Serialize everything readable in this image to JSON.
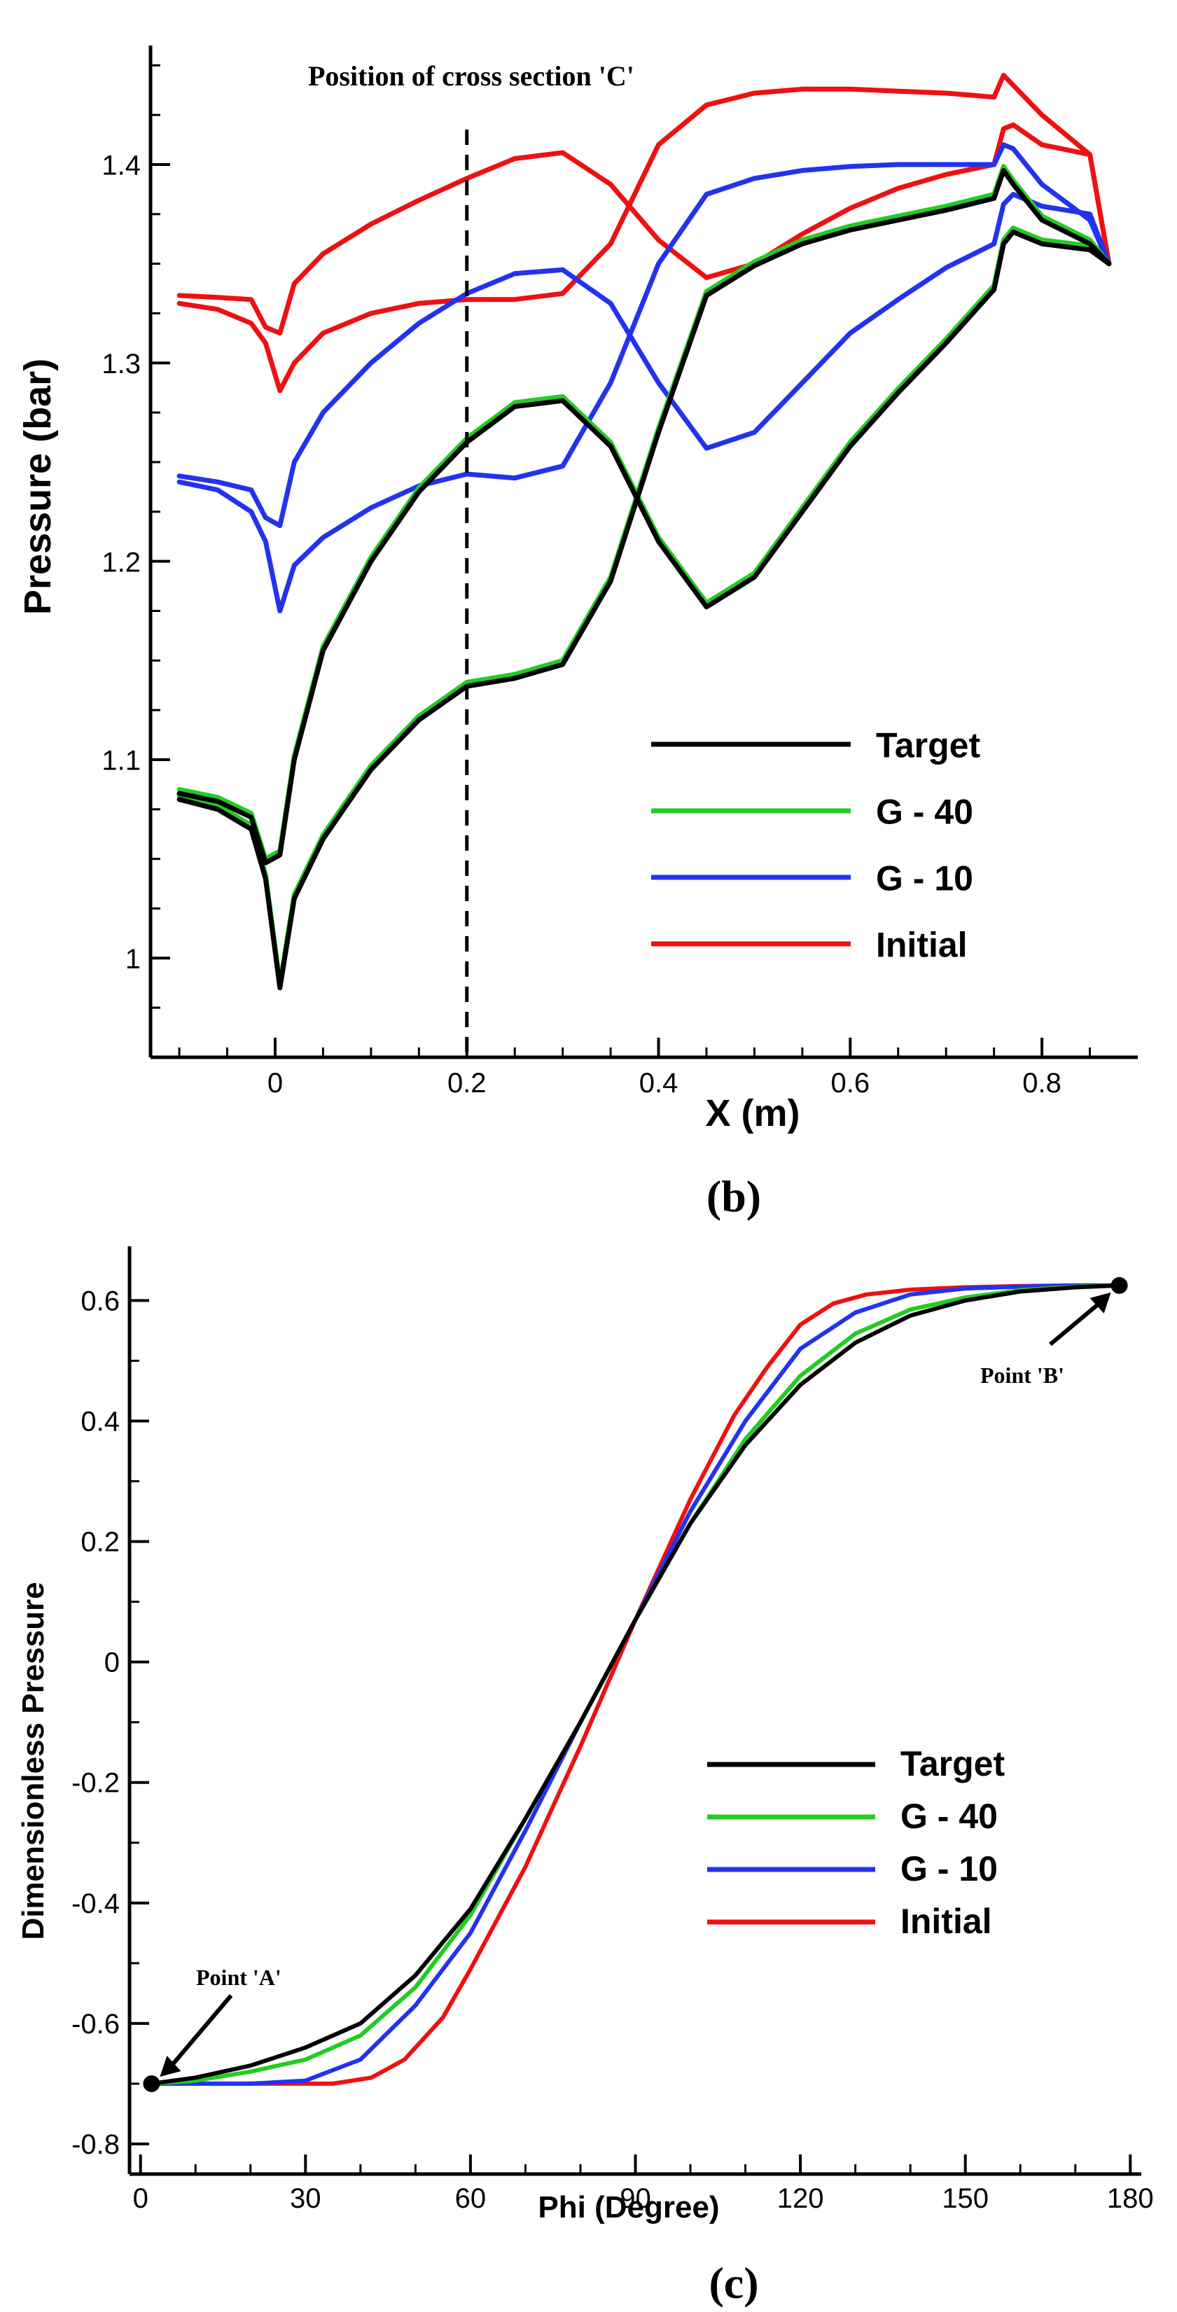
{
  "chart_data": [
    {
      "type": "line",
      "panel_label": "(b)",
      "xlabel": "X (m)",
      "ylabel": "Pressure (bar)",
      "xlim": [
        -0.13,
        0.9
      ],
      "ylim": [
        0.95,
        1.46
      ],
      "xticks": [
        0,
        0.2,
        0.4,
        0.6,
        0.8
      ],
      "xtick_labels": [
        "0",
        "0.2",
        "0.4",
        "0.6",
        "0.8"
      ],
      "yticks": [
        1.0,
        1.1,
        1.2,
        1.3,
        1.4
      ],
      "ytick_labels": [
        "1",
        "1.1",
        "1.2",
        "1.3",
        "1.4"
      ],
      "annotation": "Position of cross section 'C'",
      "dashed_line_x": 0.2,
      "legend_position": "bottom-right",
      "series": [
        {
          "name": "Target",
          "color": "#000000",
          "lower": {
            "x": [
              -0.1,
              -0.06,
              -0.025,
              -0.01,
              0.005,
              0.02,
              0.05,
              0.1,
              0.15,
              0.2,
              0.25,
              0.3,
              0.35,
              0.4,
              0.45,
              0.5,
              0.55,
              0.6,
              0.65,
              0.7,
              0.75,
              0.76,
              0.77,
              0.8,
              0.85,
              0.87
            ],
            "y": [
              1.08,
              1.075,
              1.065,
              1.04,
              0.985,
              1.03,
              1.06,
              1.095,
              1.12,
              1.137,
              1.141,
              1.148,
              1.19,
              1.265,
              1.334,
              1.349,
              1.36,
              1.367,
              1.372,
              1.377,
              1.383,
              1.397,
              1.39,
              1.372,
              1.36,
              1.35
            ]
          },
          "upper": {
            "x": [
              -0.1,
              -0.06,
              -0.025,
              -0.01,
              0.005,
              0.02,
              0.05,
              0.1,
              0.15,
              0.2,
              0.25,
              0.3,
              0.35,
              0.4,
              0.45,
              0.5,
              0.55,
              0.6,
              0.65,
              0.7,
              0.75,
              0.76,
              0.77,
              0.8,
              0.85,
              0.87
            ],
            "y": [
              1.083,
              1.079,
              1.071,
              1.048,
              1.052,
              1.1,
              1.155,
              1.2,
              1.235,
              1.26,
              1.278,
              1.281,
              1.258,
              1.21,
              1.177,
              1.192,
              1.225,
              1.258,
              1.285,
              1.31,
              1.337,
              1.36,
              1.366,
              1.36,
              1.357,
              1.35
            ]
          }
        },
        {
          "name": "G - 40",
          "color": "#22cc22",
          "lower": {
            "x": [
              -0.1,
              -0.06,
              -0.025,
              -0.01,
              0.005,
              0.02,
              0.05,
              0.1,
              0.15,
              0.2,
              0.25,
              0.3,
              0.35,
              0.4,
              0.45,
              0.5,
              0.55,
              0.6,
              0.65,
              0.7,
              0.75,
              0.76,
              0.77,
              0.8,
              0.85,
              0.87
            ],
            "y": [
              1.082,
              1.077,
              1.067,
              1.042,
              0.987,
              1.032,
              1.062,
              1.097,
              1.122,
              1.139,
              1.143,
              1.15,
              1.192,
              1.267,
              1.336,
              1.351,
              1.362,
              1.369,
              1.374,
              1.379,
              1.385,
              1.399,
              1.392,
              1.374,
              1.362,
              1.35
            ]
          },
          "upper": {
            "x": [
              -0.1,
              -0.06,
              -0.025,
              -0.01,
              0.005,
              0.02,
              0.05,
              0.1,
              0.15,
              0.2,
              0.25,
              0.3,
              0.35,
              0.4,
              0.45,
              0.5,
              0.55,
              0.6,
              0.65,
              0.7,
              0.75,
              0.76,
              0.77,
              0.8,
              0.85,
              0.87
            ],
            "y": [
              1.085,
              1.081,
              1.073,
              1.05,
              1.054,
              1.102,
              1.157,
              1.202,
              1.237,
              1.262,
              1.28,
              1.283,
              1.26,
              1.212,
              1.179,
              1.194,
              1.227,
              1.26,
              1.287,
              1.312,
              1.339,
              1.362,
              1.368,
              1.362,
              1.359,
              1.35
            ]
          }
        },
        {
          "name": "G - 10",
          "color": "#2233ee",
          "lower": {
            "x": [
              -0.1,
              -0.06,
              -0.025,
              -0.01,
              0.005,
              0.02,
              0.05,
              0.1,
              0.15,
              0.2,
              0.25,
              0.3,
              0.35,
              0.4,
              0.45,
              0.5,
              0.55,
              0.6,
              0.65,
              0.7,
              0.75,
              0.76,
              0.77,
              0.8,
              0.85,
              0.87
            ],
            "y": [
              1.24,
              1.236,
              1.225,
              1.21,
              1.175,
              1.198,
              1.212,
              1.227,
              1.238,
              1.244,
              1.242,
              1.248,
              1.29,
              1.35,
              1.385,
              1.393,
              1.397,
              1.399,
              1.4,
              1.4,
              1.4,
              1.41,
              1.408,
              1.39,
              1.372,
              1.35
            ]
          },
          "upper": {
            "x": [
              -0.1,
              -0.06,
              -0.025,
              -0.01,
              0.005,
              0.02,
              0.05,
              0.1,
              0.15,
              0.2,
              0.25,
              0.3,
              0.35,
              0.4,
              0.45,
              0.5,
              0.55,
              0.6,
              0.65,
              0.7,
              0.75,
              0.76,
              0.77,
              0.8,
              0.85,
              0.87
            ],
            "y": [
              1.243,
              1.24,
              1.236,
              1.222,
              1.218,
              1.25,
              1.275,
              1.3,
              1.32,
              1.335,
              1.345,
              1.347,
              1.33,
              1.29,
              1.257,
              1.265,
              1.29,
              1.315,
              1.332,
              1.348,
              1.36,
              1.38,
              1.385,
              1.379,
              1.375,
              1.35
            ]
          }
        },
        {
          "name": "Initial",
          "color": "#ee1111",
          "lower": {
            "x": [
              -0.1,
              -0.06,
              -0.025,
              -0.01,
              0.005,
              0.02,
              0.05,
              0.1,
              0.15,
              0.2,
              0.25,
              0.3,
              0.35,
              0.4,
              0.45,
              0.5,
              0.55,
              0.6,
              0.65,
              0.7,
              0.75,
              0.76,
              0.77,
              0.8,
              0.85,
              0.87
            ],
            "y": [
              1.33,
              1.327,
              1.32,
              1.31,
              1.286,
              1.3,
              1.315,
              1.325,
              1.33,
              1.332,
              1.332,
              1.335,
              1.36,
              1.41,
              1.43,
              1.436,
              1.438,
              1.438,
              1.437,
              1.436,
              1.434,
              1.445,
              1.44,
              1.425,
              1.405,
              1.35
            ]
          },
          "upper": {
            "x": [
              -0.1,
              -0.06,
              -0.025,
              -0.01,
              0.005,
              0.02,
              0.05,
              0.1,
              0.15,
              0.2,
              0.25,
              0.3,
              0.35,
              0.4,
              0.45,
              0.5,
              0.55,
              0.6,
              0.65,
              0.7,
              0.75,
              0.76,
              0.77,
              0.8,
              0.85,
              0.87
            ],
            "y": [
              1.334,
              1.333,
              1.332,
              1.318,
              1.315,
              1.34,
              1.355,
              1.37,
              1.382,
              1.393,
              1.403,
              1.406,
              1.39,
              1.362,
              1.343,
              1.35,
              1.365,
              1.378,
              1.388,
              1.395,
              1.4,
              1.418,
              1.42,
              1.41,
              1.405,
              1.35
            ]
          }
        }
      ]
    },
    {
      "type": "line",
      "panel_label": "(c)",
      "xlabel": "Phi (Degree)",
      "ylabel": "Dimensionless Pressure",
      "xlim": [
        -2,
        182
      ],
      "ylim": [
        -0.85,
        0.69
      ],
      "xticks": [
        0,
        30,
        60,
        90,
        120,
        150,
        180
      ],
      "xtick_labels": [
        "0",
        "30",
        "60",
        "90",
        "120",
        "150",
        "180"
      ],
      "yticks": [
        -0.8,
        -0.6,
        -0.4,
        -0.2,
        0,
        0.2,
        0.4,
        0.6
      ],
      "ytick_labels": [
        "-0.8",
        "-0.6",
        "-0.4",
        "-0.2",
        "0",
        "0.2",
        "0.4",
        "0.6"
      ],
      "annotations": [
        {
          "text": "Point 'A'",
          "x": 2,
          "y": -0.7
        },
        {
          "text": "Point 'B'",
          "x": 178,
          "y": 0.625
        }
      ],
      "legend_position": "bottom-right",
      "series": [
        {
          "name": "Target",
          "color": "#000000",
          "x": [
            2,
            10,
            20,
            30,
            40,
            50,
            60,
            70,
            80,
            90,
            100,
            110,
            120,
            130,
            140,
            150,
            160,
            170,
            178
          ],
          "y": [
            -0.7,
            -0.69,
            -0.67,
            -0.64,
            -0.6,
            -0.52,
            -0.41,
            -0.26,
            -0.1,
            0.07,
            0.23,
            0.36,
            0.46,
            0.53,
            0.575,
            0.6,
            0.615,
            0.622,
            0.625
          ]
        },
        {
          "name": "G - 40",
          "color": "#22cc22",
          "x": [
            2,
            10,
            20,
            30,
            40,
            50,
            60,
            70,
            80,
            90,
            100,
            110,
            120,
            130,
            140,
            150,
            160,
            170,
            178
          ],
          "y": [
            -0.7,
            -0.695,
            -0.68,
            -0.66,
            -0.62,
            -0.54,
            -0.42,
            -0.26,
            -0.1,
            0.07,
            0.23,
            0.37,
            0.475,
            0.545,
            0.585,
            0.605,
            0.617,
            0.623,
            0.625
          ]
        },
        {
          "name": "G - 10",
          "color": "#2233ee",
          "x": [
            2,
            10,
            20,
            30,
            40,
            50,
            60,
            70,
            80,
            90,
            100,
            110,
            120,
            130,
            140,
            150,
            160,
            170,
            178
          ],
          "y": [
            -0.7,
            -0.7,
            -0.7,
            -0.695,
            -0.66,
            -0.57,
            -0.45,
            -0.28,
            -0.1,
            0.07,
            0.25,
            0.4,
            0.52,
            0.58,
            0.61,
            0.62,
            0.623,
            0.625,
            0.625
          ]
        },
        {
          "name": "Initial",
          "color": "#ee1111",
          "x": [
            2,
            10,
            20,
            30,
            35,
            42,
            48,
            55,
            60,
            70,
            80,
            90,
            100,
            108,
            114,
            120,
            126,
            132,
            140,
            150,
            160,
            170,
            178
          ],
          "y": [
            -0.7,
            -0.7,
            -0.7,
            -0.7,
            -0.7,
            -0.69,
            -0.66,
            -0.59,
            -0.51,
            -0.34,
            -0.14,
            0.07,
            0.27,
            0.41,
            0.49,
            0.56,
            0.595,
            0.61,
            0.618,
            0.622,
            0.624,
            0.625,
            0.625
          ]
        }
      ]
    }
  ]
}
